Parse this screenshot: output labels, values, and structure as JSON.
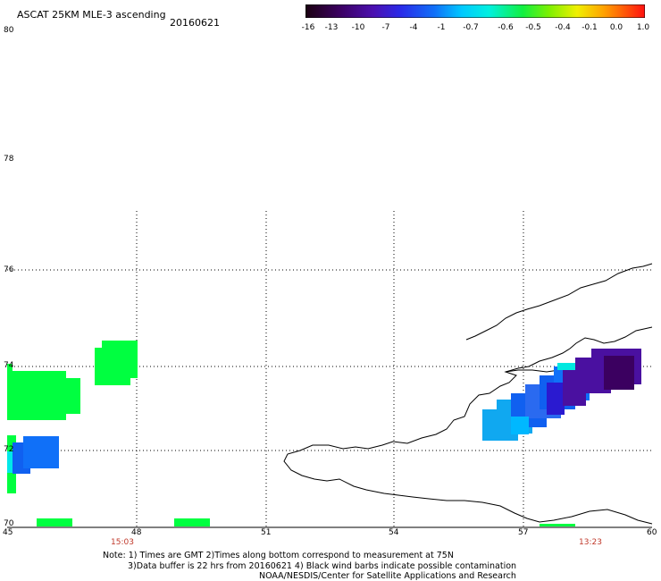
{
  "header": {
    "title": "ASCAT 25KM MLE-3 ascending",
    "date": "20160621"
  },
  "colorbar": {
    "labels": [
      "-16",
      "-13",
      "-10",
      "-7",
      "-4",
      "-1",
      "-0.7",
      "-0.6",
      "-0.5",
      "-0.4",
      "-0.1",
      "0.0",
      "1.0"
    ],
    "colors": [
      "#1a0010",
      "#3b0060",
      "#4b10b0",
      "#2a2ae8",
      "#1070f8",
      "#00b8ff",
      "#00e8e0",
      "#00f060",
      "#60f000",
      "#d8f000",
      "#ffc000",
      "#ff7000",
      "#ff2000"
    ]
  },
  "axes": {
    "lat_labels": [
      "80",
      "78",
      "76",
      "74",
      "72",
      "70"
    ],
    "lon_labels": [
      "45",
      "48",
      "51",
      "54",
      "57",
      "60"
    ]
  },
  "times": {
    "left": "15:03",
    "right": "13:23"
  },
  "notes": {
    "line1": "Note: 1) Times are GMT 2)Times along bottom correspond to measurement at 75N",
    "line2": "3)Data buffer is 22 hrs from 20160621 4) Black wind barbs indicate possible contamination",
    "line3": "NOAA/NESDIS/Center for Satellite Applications and Research"
  },
  "legend_colors": {
    "green": "#00ff40",
    "cyan": "#00e8e8",
    "sky": "#10a8f0",
    "blue": "#1060f0",
    "indigo": "#2a1ad0",
    "purple": "#4a10a0",
    "darkpurple": "#2a0070"
  }
}
